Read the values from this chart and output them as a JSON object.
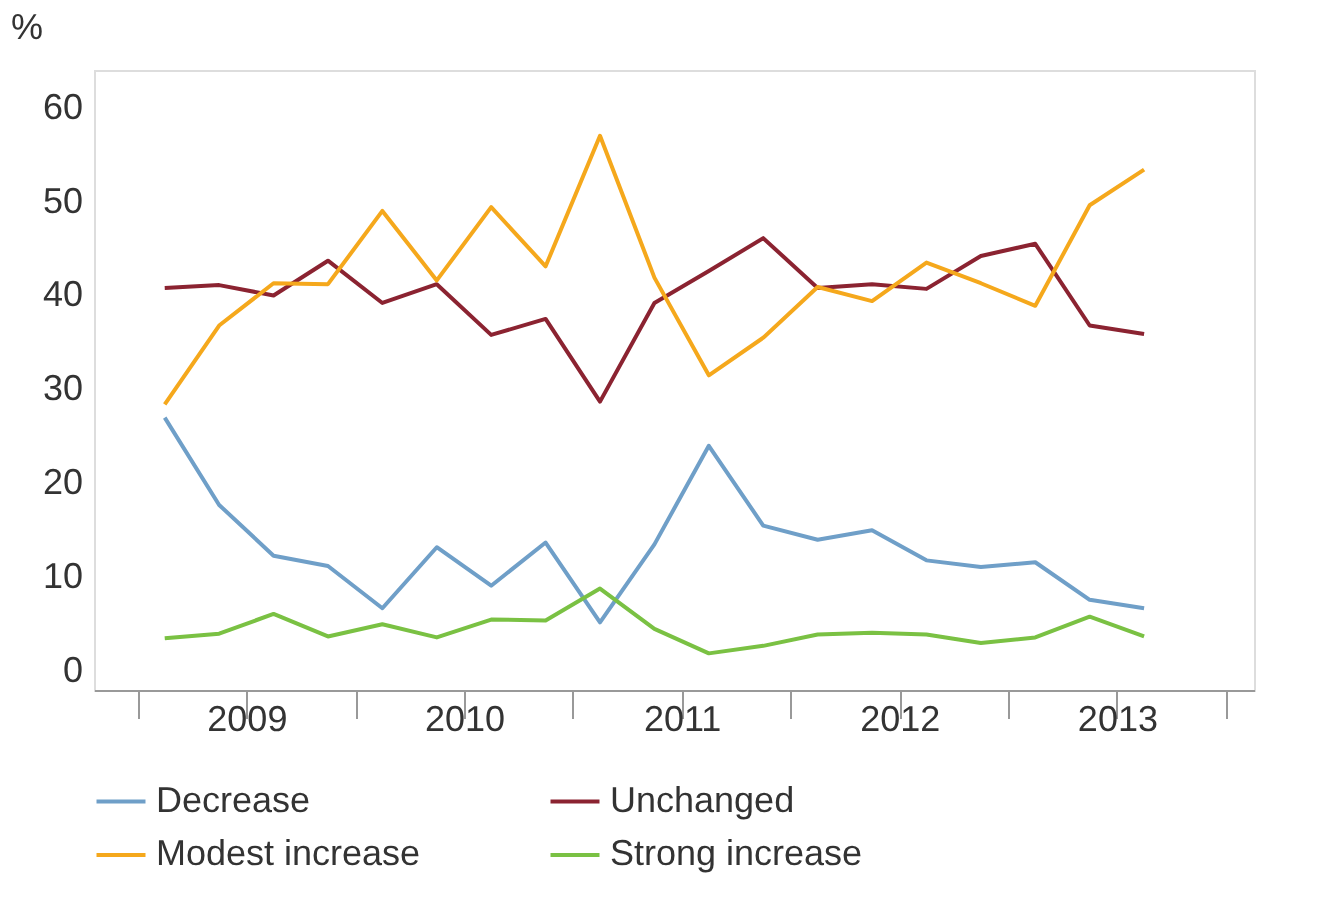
{
  "chart_data": {
    "type": "line",
    "ylabel": "%",
    "x": [
      2009.125,
      2009.375,
      2009.625,
      2009.875,
      2010.125,
      2010.375,
      2010.625,
      2010.875,
      2011.125,
      2011.375,
      2011.625,
      2011.875,
      2012.125,
      2012.375,
      2012.625,
      2012.875,
      2013.125,
      2013.375,
      2013.625
    ],
    "xlim": [
      2008.8,
      2014.13
    ],
    "xticks": [
      {
        "value": 2009,
        "label": null
      },
      {
        "value": 2009.5,
        "label": "2009"
      },
      {
        "value": 2010,
        "label": null
      },
      {
        "value": 2010.5,
        "label": "2010"
      },
      {
        "value": 2011,
        "label": null
      },
      {
        "value": 2011.5,
        "label": "2011"
      },
      {
        "value": 2012,
        "label": null
      },
      {
        "value": 2012.5,
        "label": "2012"
      },
      {
        "value": 2013,
        "label": null
      },
      {
        "value": 2013.5,
        "label": "2013"
      },
      {
        "value": 2014,
        "label": null
      }
    ],
    "ylim": [
      -2,
      64
    ],
    "yticks": [
      0,
      10,
      20,
      30,
      40,
      50,
      60
    ],
    "grid": false,
    "legend": "bottom",
    "marker": "none",
    "line_style": "solid",
    "series": [
      {
        "name": "Decrease",
        "color": "#6f9fc8",
        "values": [
          27,
          17.7,
          12.3,
          11.2,
          6.7,
          13.2,
          9.1,
          13.7,
          5.2,
          13.5,
          24,
          15.5,
          14,
          15,
          11.8,
          11.1,
          11.6,
          7.6,
          6.7
        ]
      },
      {
        "name": "Unchanged",
        "color": "#8b2331",
        "values": [
          40.8,
          41.1,
          40,
          43.7,
          39.2,
          41.2,
          35.8,
          37.5,
          28.7,
          39.2,
          42.6,
          46.1,
          40.8,
          41.2,
          40.7,
          44.2,
          45.5,
          36.8,
          35.9
        ]
      },
      {
        "name": "Modest increase",
        "color": "#f5a81c",
        "values": [
          28.4,
          36.8,
          41.3,
          41.2,
          49,
          41.6,
          49.4,
          43.1,
          57,
          41.9,
          31.5,
          35.5,
          40.9,
          39.4,
          43.5,
          41.3,
          38.9,
          49.6,
          53.4
        ]
      },
      {
        "name": "Strong increase",
        "color": "#7ac143",
        "values": [
          3.5,
          4,
          6.1,
          3.7,
          5,
          3.6,
          5.5,
          5.4,
          8.8,
          4.5,
          1.9,
          2.7,
          3.9,
          4.1,
          3.9,
          3,
          3.6,
          5.8,
          3.7
        ]
      }
    ]
  }
}
